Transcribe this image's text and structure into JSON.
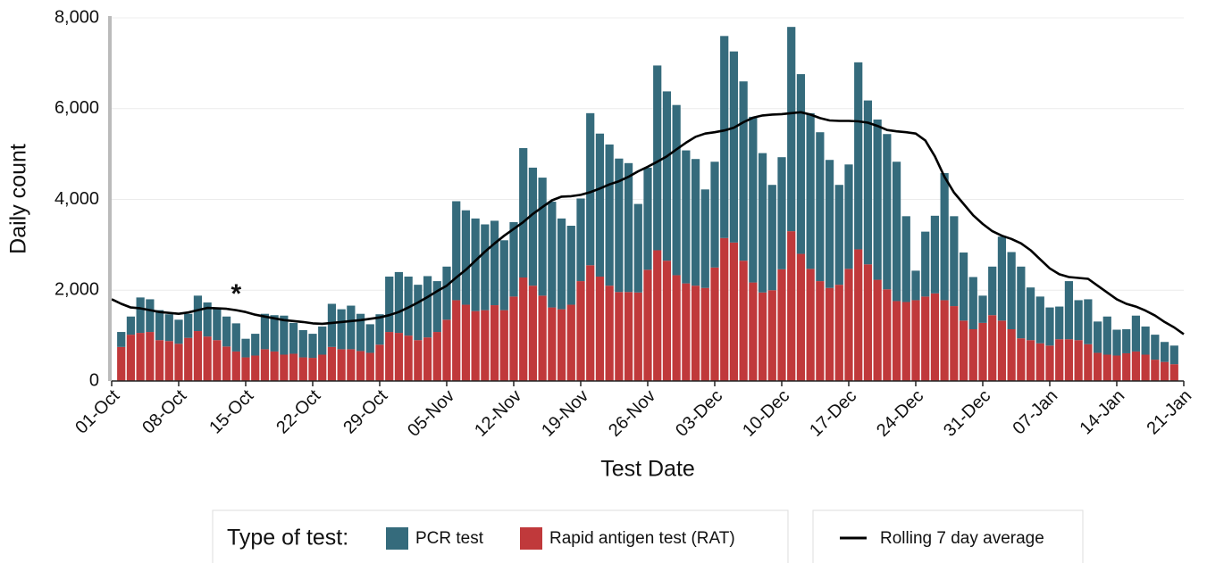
{
  "chart_data": {
    "type": "bar",
    "x_label": "Test Date",
    "y_label": "Daily count",
    "x": [
      "01-Oct",
      "02-Oct",
      "03-Oct",
      "04-Oct",
      "05-Oct",
      "06-Oct",
      "07-Oct",
      "08-Oct",
      "09-Oct",
      "10-Oct",
      "11-Oct",
      "12-Oct",
      "13-Oct",
      "14-Oct",
      "15-Oct",
      "16-Oct",
      "17-Oct",
      "18-Oct",
      "19-Oct",
      "20-Oct",
      "21-Oct",
      "22-Oct",
      "23-Oct",
      "24-Oct",
      "25-Oct",
      "26-Oct",
      "27-Oct",
      "28-Oct",
      "29-Oct",
      "30-Oct",
      "31-Oct",
      "01-Nov",
      "02-Nov",
      "03-Nov",
      "04-Nov",
      "05-Nov",
      "06-Nov",
      "07-Nov",
      "08-Nov",
      "09-Nov",
      "10-Nov",
      "11-Nov",
      "12-Nov",
      "13-Nov",
      "14-Nov",
      "15-Nov",
      "16-Nov",
      "17-Nov",
      "18-Nov",
      "19-Nov",
      "20-Nov",
      "21-Nov",
      "22-Nov",
      "23-Nov",
      "24-Nov",
      "25-Nov",
      "26-Nov",
      "27-Nov",
      "28-Nov",
      "29-Nov",
      "30-Nov",
      "01-Dec",
      "02-Dec",
      "03-Dec",
      "04-Dec",
      "05-Dec",
      "06-Dec",
      "07-Dec",
      "08-Dec",
      "09-Dec",
      "10-Dec",
      "11-Dec",
      "12-Dec",
      "13-Dec",
      "14-Dec",
      "15-Dec",
      "16-Dec",
      "17-Dec",
      "18-Dec",
      "19-Dec",
      "20-Dec",
      "21-Dec",
      "22-Dec",
      "23-Dec",
      "24-Dec",
      "25-Dec",
      "26-Dec",
      "27-Dec",
      "28-Dec",
      "29-Dec",
      "30-Dec",
      "31-Dec",
      "01-Jan",
      "02-Jan",
      "03-Jan",
      "04-Jan",
      "05-Jan",
      "06-Jan",
      "07-Jan",
      "08-Jan",
      "09-Jan",
      "10-Jan",
      "11-Jan",
      "12-Jan",
      "13-Jan",
      "14-Jan",
      "15-Jan",
      "16-Jan",
      "17-Jan",
      "18-Jan",
      "19-Jan",
      "20-Jan",
      "21-Jan"
    ],
    "xticks": [
      "01-Oct",
      "08-Oct",
      "15-Oct",
      "22-Oct",
      "29-Oct",
      "05-Nov",
      "12-Nov",
      "19-Nov",
      "26-Nov",
      "03-Dec",
      "10-Dec",
      "17-Dec",
      "24-Dec",
      "31-Dec",
      "07-Jan",
      "14-Jan",
      "21-Jan"
    ],
    "ylim": [
      0,
      8000
    ],
    "yticks": [
      0,
      {
        "value": 2000,
        "label": "2,000"
      },
      {
        "value": 4000,
        "label": "4,000"
      },
      {
        "value": 6000,
        "label": "6,000"
      },
      {
        "value": 8000,
        "label": "8,000"
      }
    ],
    "grid": true,
    "stacked": true,
    "legend_title": "Type of test:",
    "series": [
      {
        "name": "Rapid antigen test (RAT)",
        "type": "bar",
        "color": "#c0393b",
        "values": [
          null,
          750,
          1020,
          1060,
          1080,
          900,
          880,
          820,
          950,
          1100,
          980,
          900,
          760,
          650,
          520,
          560,
          700,
          650,
          580,
          600,
          520,
          510,
          580,
          750,
          700,
          700,
          660,
          620,
          800,
          1080,
          1060,
          1000,
          900,
          960,
          1080,
          1350,
          1780,
          1680,
          1540,
          1560,
          1670,
          1560,
          1860,
          2280,
          2100,
          1880,
          1620,
          1580,
          1680,
          2200,
          2550,
          2300,
          2100,
          1960,
          1960,
          1950,
          2450,
          2880,
          2650,
          2330,
          2150,
          2100,
          2050,
          2500,
          3150,
          3050,
          2650,
          2170,
          1950,
          2000,
          2460,
          3300,
          2800,
          2470,
          2200,
          2050,
          2120,
          2470,
          2900,
          2570,
          2230,
          2020,
          1760,
          1740,
          1780,
          1860,
          1930,
          1780,
          1650,
          1330,
          1140,
          1280,
          1450,
          1330,
          1140,
          940,
          900,
          830,
          780,
          920,
          920,
          900,
          810,
          620,
          580,
          560,
          610,
          650,
          580,
          470,
          420,
          370,
          null
        ]
      },
      {
        "name": "PCR test",
        "type": "bar",
        "color": "#356b7c",
        "values": [
          null,
          330,
          400,
          780,
          720,
          660,
          590,
          530,
          530,
          780,
          750,
          720,
          660,
          620,
          410,
          480,
          780,
          800,
          860,
          680,
          600,
          530,
          620,
          950,
          880,
          960,
          820,
          630,
          670,
          1220,
          1340,
          1300,
          1220,
          1350,
          1120,
          1170,
          2180,
          2080,
          2040,
          1890,
          1860,
          1540,
          1640,
          2850,
          2600,
          2600,
          2330,
          2000,
          1740,
          1820,
          3350,
          3150,
          3110,
          2940,
          2840,
          1950,
          2250,
          4070,
          3730,
          3750,
          2930,
          2790,
          2170,
          2330,
          4450,
          4210,
          3950,
          3650,
          3070,
          2320,
          2470,
          4500,
          3960,
          3430,
          3280,
          2820,
          2200,
          2300,
          4120,
          3610,
          3530,
          3420,
          3070,
          1890,
          650,
          1430,
          1710,
          2800,
          1980,
          1500,
          1150,
          600,
          1070,
          1850,
          1700,
          1580,
          1160,
          1030,
          840,
          720,
          1280,
          880,
          990,
          690,
          840,
          570,
          530,
          790,
          620,
          550,
          440,
          410,
          null
        ]
      },
      {
        "name": "Rolling 7 day average",
        "type": "line",
        "color": "#000000",
        "values": [
          1800,
          1700,
          1620,
          1600,
          1560,
          1520,
          1500,
          1480,
          1510,
          1560,
          1610,
          1600,
          1590,
          1560,
          1520,
          1460,
          1420,
          1380,
          1340,
          1320,
          1300,
          1270,
          1260,
          1280,
          1300,
          1320,
          1340,
          1370,
          1400,
          1450,
          1520,
          1620,
          1730,
          1850,
          1980,
          2100,
          2280,
          2450,
          2650,
          2850,
          3030,
          3200,
          3350,
          3500,
          3680,
          3830,
          3980,
          4060,
          4070,
          4100,
          4160,
          4240,
          4330,
          4400,
          4500,
          4620,
          4720,
          4830,
          4950,
          5100,
          5250,
          5380,
          5450,
          5480,
          5520,
          5580,
          5700,
          5800,
          5850,
          5870,
          5880,
          5900,
          5920,
          5870,
          5790,
          5740,
          5730,
          5730,
          5720,
          5690,
          5620,
          5530,
          5500,
          5480,
          5450,
          5300,
          4950,
          4500,
          4150,
          3900,
          3650,
          3460,
          3300,
          3200,
          3130,
          3030,
          2880,
          2680,
          2480,
          2350,
          2290,
          2270,
          2250,
          2100,
          1950,
          1800,
          1700,
          1640,
          1550,
          1440,
          1300,
          1180,
          1030
        ]
      }
    ],
    "annotations": [
      {
        "text": "*",
        "x": "14-Oct",
        "y": 2000
      }
    ]
  }
}
